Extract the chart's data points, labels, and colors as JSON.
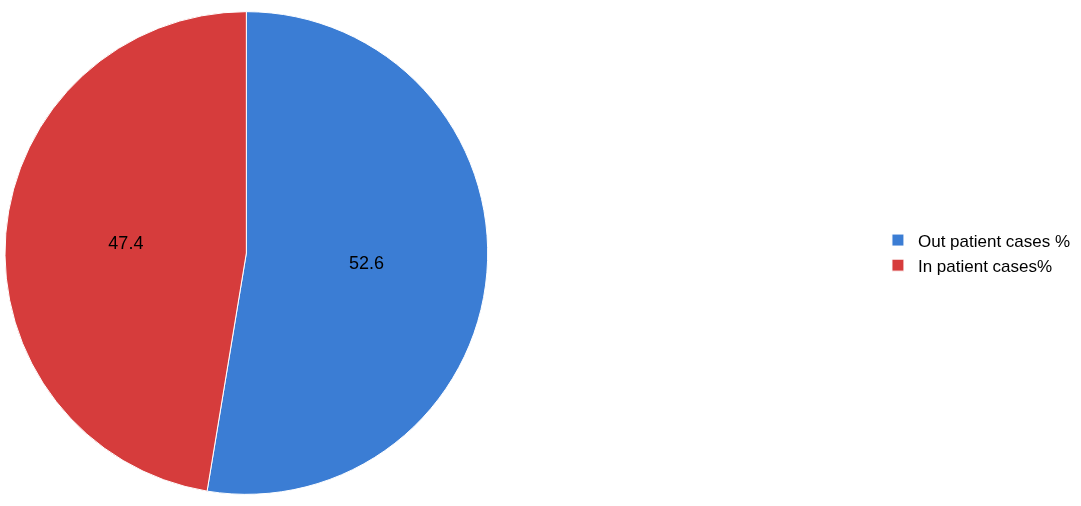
{
  "chart_data": {
    "type": "pie",
    "categories": [
      "Out patient cases %",
      "In patient cases%"
    ],
    "values": [
      52.6,
      47.4
    ],
    "colors": [
      "#3b7dd4",
      "#d63c3c"
    ],
    "data_labels": true,
    "legend": "right"
  }
}
